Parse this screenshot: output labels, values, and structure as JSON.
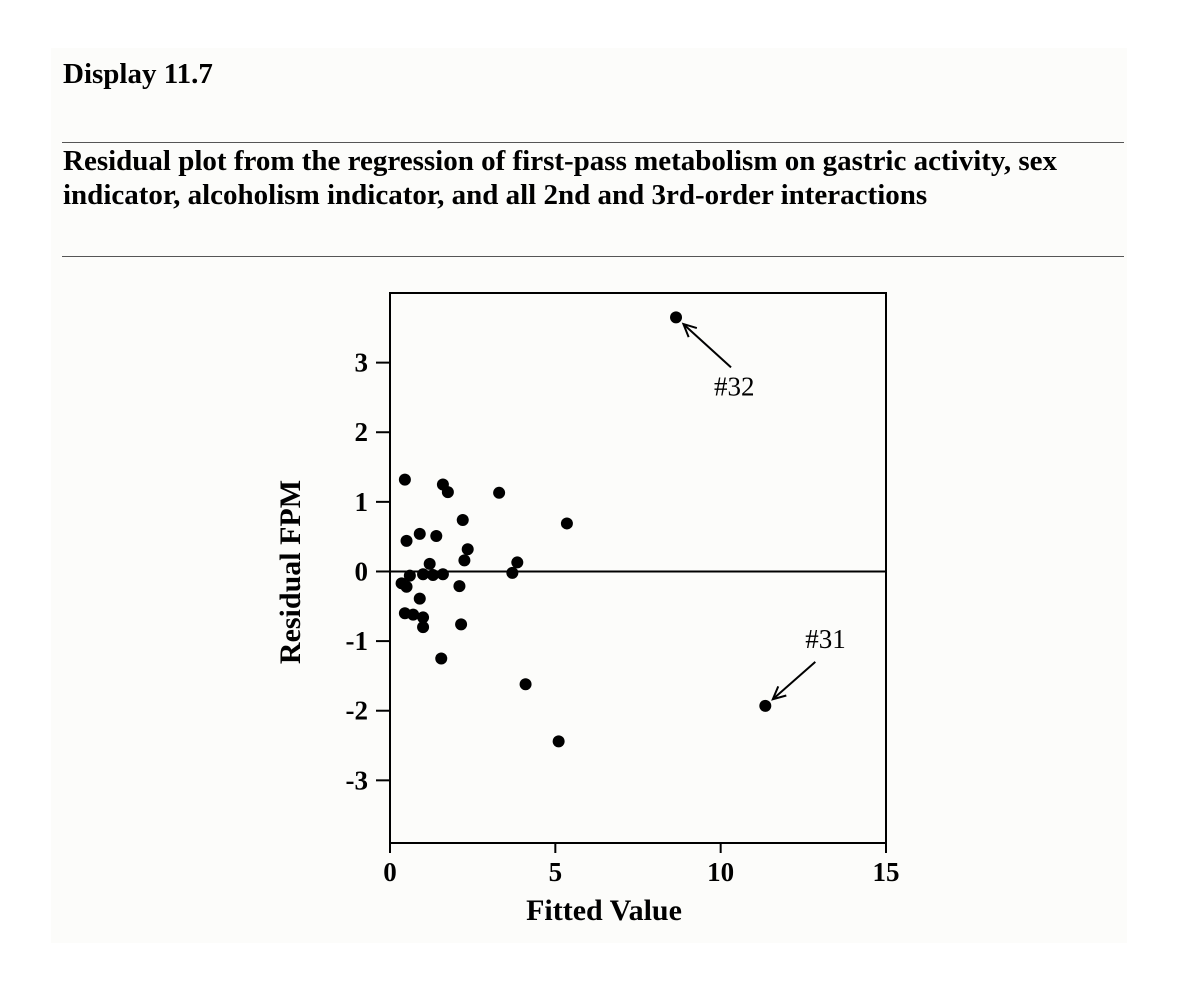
{
  "figure": {
    "label": "Display 11.7",
    "caption": "Residual plot from the regression of first-pass metabolism on gastric activity, sex indicator, alcoholism indicator, and all 2nd and 3rd-order interactions"
  },
  "chart_data": {
    "type": "scatter",
    "title": "",
    "xlabel": "Fitted Value",
    "ylabel": "Residual FPM",
    "xlim": [
      0,
      15
    ],
    "ylim": [
      -3.9,
      4.0
    ],
    "xticks": [
      0,
      5,
      10,
      15
    ],
    "yticks": [
      -3,
      -2,
      -1,
      0,
      1,
      2,
      3
    ],
    "reference_line": {
      "y": 0
    },
    "grid": false,
    "points": [
      {
        "x": 0.45,
        "y": 1.32
      },
      {
        "x": 1.6,
        "y": 1.25
      },
      {
        "x": 1.75,
        "y": 1.14
      },
      {
        "x": 3.3,
        "y": 1.13
      },
      {
        "x": 2.2,
        "y": 0.74
      },
      {
        "x": 5.35,
        "y": 0.69
      },
      {
        "x": 0.9,
        "y": 0.54
      },
      {
        "x": 1.4,
        "y": 0.51
      },
      {
        "x": 0.5,
        "y": 0.44
      },
      {
        "x": 2.35,
        "y": 0.32
      },
      {
        "x": 2.25,
        "y": 0.16
      },
      {
        "x": 3.85,
        "y": 0.13
      },
      {
        "x": 1.2,
        "y": 0.11
      },
      {
        "x": 0.6,
        "y": -0.06
      },
      {
        "x": 1.0,
        "y": -0.04
      },
      {
        "x": 1.3,
        "y": -0.05
      },
      {
        "x": 1.6,
        "y": -0.04
      },
      {
        "x": 3.7,
        "y": -0.02
      },
      {
        "x": 0.35,
        "y": -0.17
      },
      {
        "x": 0.5,
        "y": -0.22
      },
      {
        "x": 2.1,
        "y": -0.21
      },
      {
        "x": 0.9,
        "y": -0.39
      },
      {
        "x": 0.45,
        "y": -0.6
      },
      {
        "x": 0.7,
        "y": -0.62
      },
      {
        "x": 1.0,
        "y": -0.66
      },
      {
        "x": 1.0,
        "y": -0.8
      },
      {
        "x": 2.15,
        "y": -0.76
      },
      {
        "x": 1.55,
        "y": -1.25
      },
      {
        "x": 4.1,
        "y": -1.62
      },
      {
        "x": 5.1,
        "y": -2.44
      },
      {
        "x": 8.65,
        "y": 3.65
      },
      {
        "x": 11.35,
        "y": -1.93
      }
    ],
    "annotations": [
      {
        "label": "#32",
        "x": 8.65,
        "y": 3.65
      },
      {
        "label": "#31",
        "x": 11.35,
        "y": -1.93
      }
    ],
    "marker_color": "#000000"
  }
}
